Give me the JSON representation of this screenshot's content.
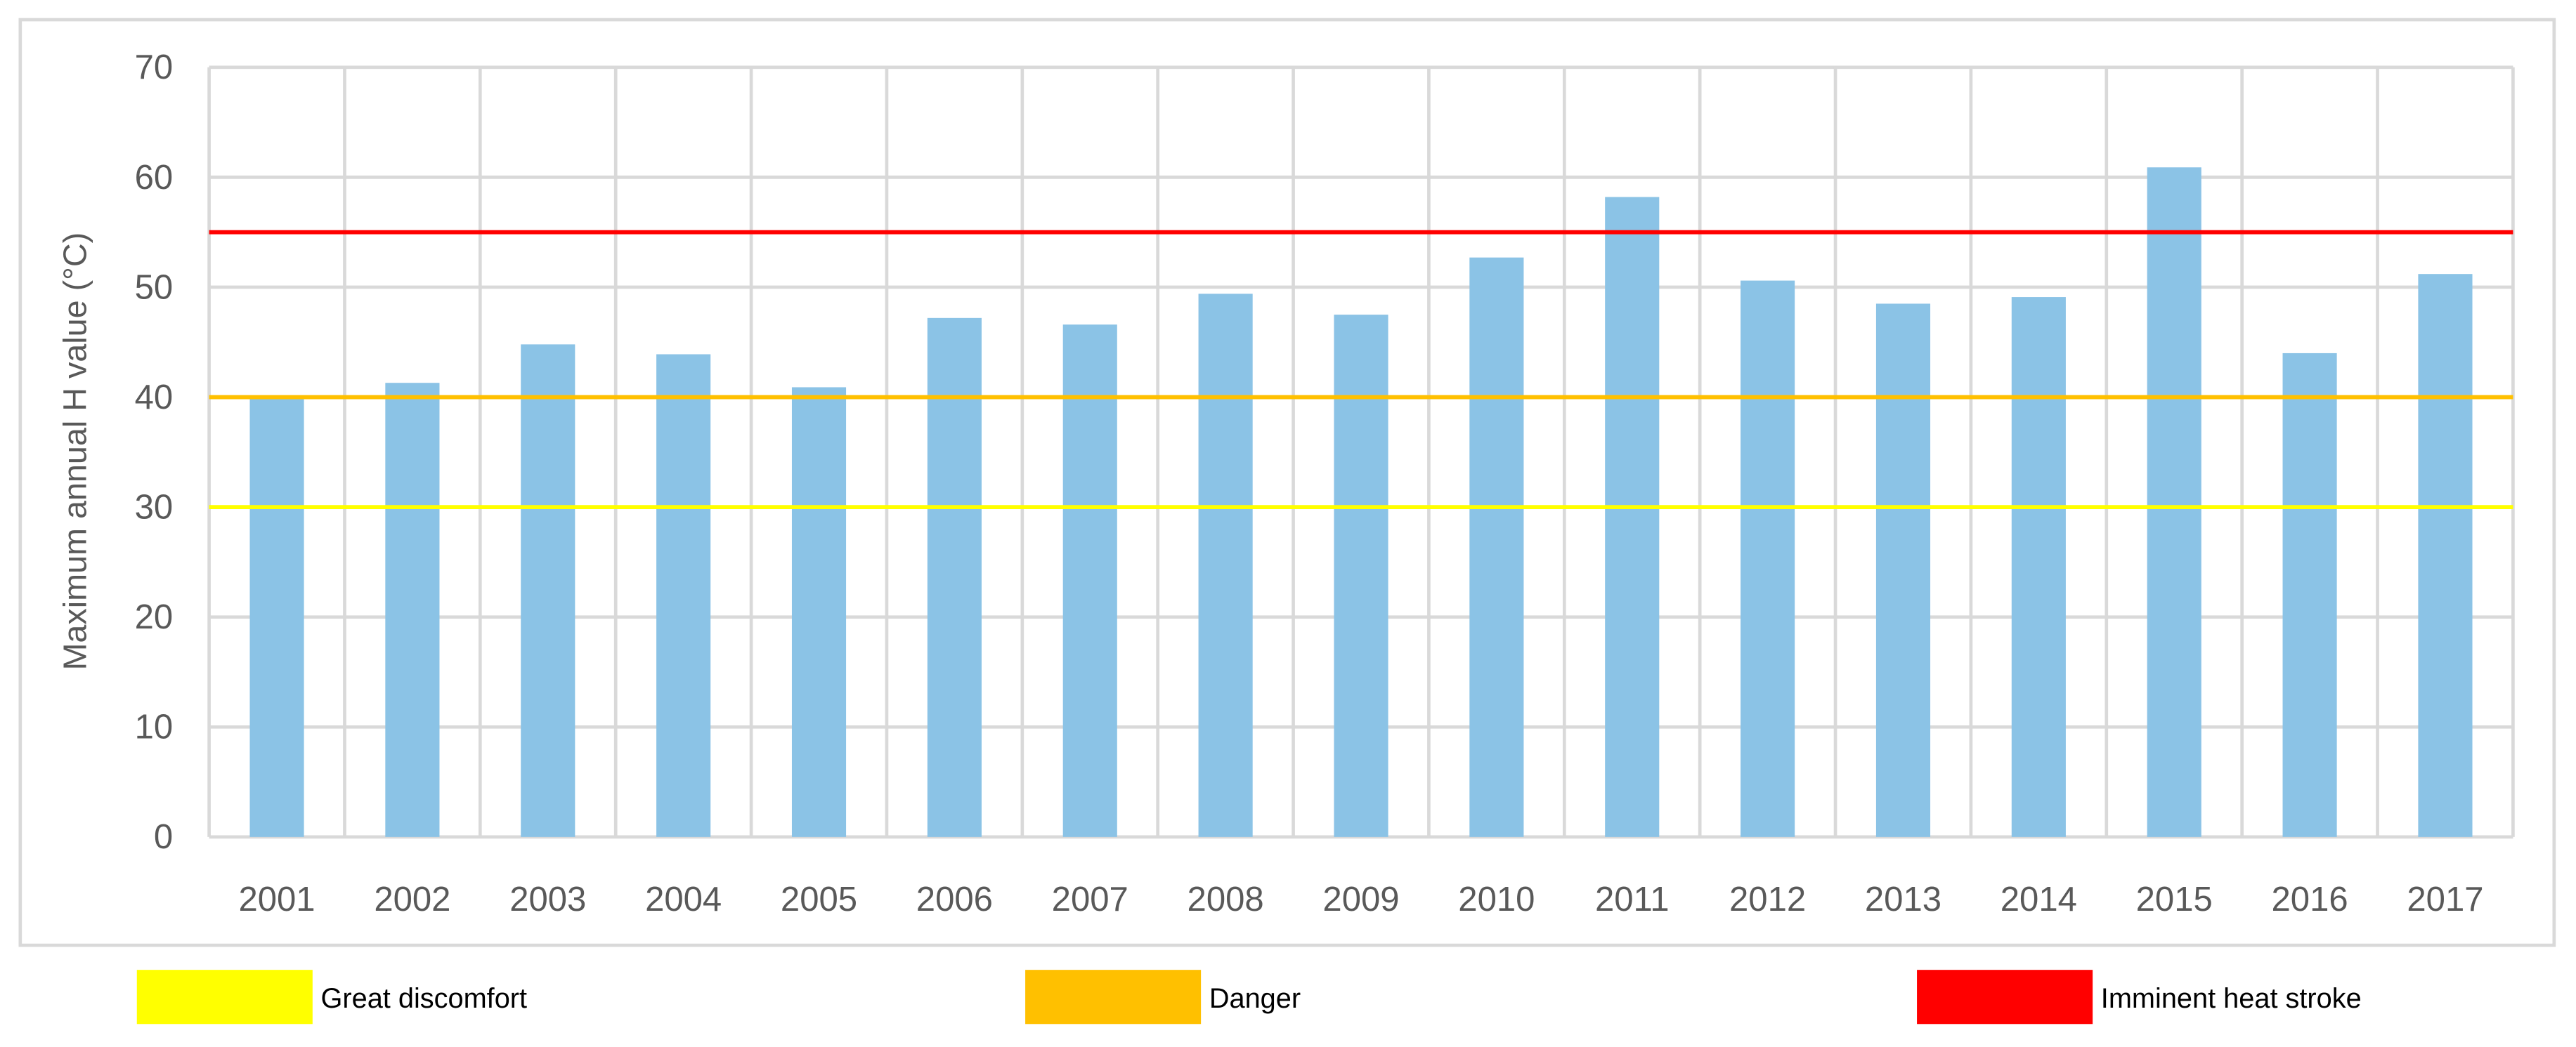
{
  "chart_data": {
    "type": "bar",
    "title": "",
    "xlabel": "",
    "ylabel": "Maximum annual H value (°C)",
    "ylim": [
      0,
      70
    ],
    "yticks": [
      0,
      10,
      20,
      30,
      40,
      50,
      60,
      70
    ],
    "grid": true,
    "categories": [
      "2001",
      "2002",
      "2003",
      "2004",
      "2005",
      "2006",
      "2007",
      "2008",
      "2009",
      "2010",
      "2011",
      "2012",
      "2013",
      "2014",
      "2015",
      "2016",
      "2017"
    ],
    "values": [
      40.1,
      41.3,
      44.8,
      43.9,
      40.9,
      47.2,
      46.6,
      49.4,
      47.5,
      52.7,
      58.2,
      50.6,
      48.5,
      49.1,
      60.9,
      44.0,
      51.2
    ],
    "bar_color": "#8BC3E6",
    "thresholds": [
      {
        "name": "Great discomfort",
        "value": 30,
        "color": "#FFFF00"
      },
      {
        "name": "Danger",
        "value": 40,
        "color": "#FFC000"
      },
      {
        "name": "Imminent heat stroke",
        "value": 55,
        "color": "#FF0000"
      }
    ],
    "legend_position": "bottom"
  }
}
